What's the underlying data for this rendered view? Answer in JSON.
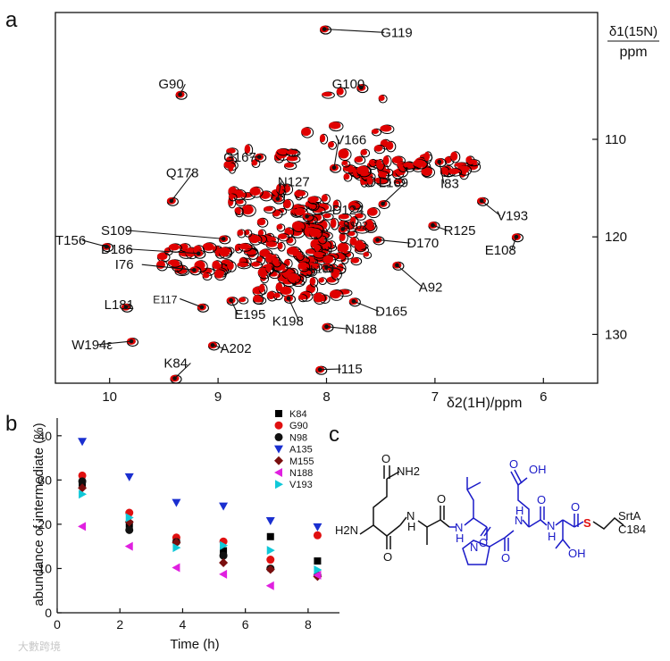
{
  "panels": {
    "a": "a",
    "b": "b",
    "c": "c"
  },
  "watermark": "大數跨境",
  "chart_data": [
    {
      "type": "scatter",
      "panel": "a",
      "title": "",
      "xlabel": "δ2(1H)/ppm",
      "ylabel_num": "δ1(15N)",
      "ylabel_den": "ppm",
      "xlim": [
        10.5,
        5.5
      ],
      "ylim": [
        135,
        97
      ],
      "xticks": [
        10,
        9,
        8,
        7,
        6
      ],
      "yticks": [
        110,
        120,
        130
      ],
      "reference_color": "#000000",
      "intermediate_color": "#e00000",
      "peaks": [
        {
          "x": 8.02,
          "y": 98.7,
          "label": "G119",
          "lx": 7.5,
          "ly": 99.5,
          "size": "big"
        },
        {
          "x": 9.35,
          "y": 105.4,
          "label": "G90",
          "lx": 9.55,
          "ly": 104.8,
          "size": "big"
        },
        {
          "x": 7.68,
          "y": 104.7,
          "label": "G100",
          "lx": 7.95,
          "ly": 104.8,
          "size": "big"
        },
        {
          "x": 8.62,
          "y": 111.8,
          "label": "G167",
          "lx": 8.95,
          "ly": 112.3,
          "size": "big"
        },
        {
          "x": 7.93,
          "y": 112.9,
          "label": "V166",
          "lx": 7.92,
          "ly": 110.5,
          "size": "big"
        },
        {
          "x": 8.45,
          "y": 116.1,
          "label": "N127",
          "lx": 8.45,
          "ly": 114.8,
          "size": "big"
        },
        {
          "x": 7.48,
          "y": 116.6,
          "label": "L169",
          "lx": 7.52,
          "ly": 114.9,
          "size": "big"
        },
        {
          "x": 6.96,
          "y": 112.3,
          "label": "I83",
          "lx": 6.95,
          "ly": 115.0,
          "size": "big"
        },
        {
          "x": 9.43,
          "y": 116.3,
          "label": "Q178",
          "lx": 9.48,
          "ly": 113.9,
          "size": "big"
        },
        {
          "x": 8.18,
          "y": 117.9,
          "label": "D124",
          "lx": 7.95,
          "ly": 117.7,
          "size": "big"
        },
        {
          "x": 6.57,
          "y": 116.3,
          "label": "V193",
          "lx": 6.43,
          "ly": 118.3,
          "size": "big"
        },
        {
          "x": 7.85,
          "y": 119.2,
          "label": "S102",
          "lx": 7.85,
          "ly": 119.2,
          "size": "small"
        },
        {
          "x": 8.95,
          "y": 120.2,
          "label": "S109",
          "lx": 10.08,
          "ly": 119.8,
          "size": "big"
        },
        {
          "x": 7.02,
          "y": 118.8,
          "label": "R125",
          "lx": 6.92,
          "ly": 119.8,
          "size": "big"
        },
        {
          "x": 10.03,
          "y": 121.0,
          "label": "T156",
          "lx": 10.5,
          "ly": 120.8,
          "size": "big"
        },
        {
          "x": 9.18,
          "y": 121.7,
          "label": "D186",
          "lx": 10.08,
          "ly": 121.7,
          "size": "big"
        },
        {
          "x": 7.53,
          "y": 120.3,
          "label": "D170",
          "lx": 7.26,
          "ly": 121.1,
          "size": "big"
        },
        {
          "x": 6.25,
          "y": 120.0,
          "label": "E108",
          "lx": 6.54,
          "ly": 121.8,
          "size": "big"
        },
        {
          "x": 9.22,
          "y": 123.4,
          "label": "I76",
          "lx": 9.95,
          "ly": 123.3,
          "size": "big"
        },
        {
          "x": 8.0,
          "y": 123.1,
          "label": "L133",
          "lx": 8.15,
          "ly": 123.7,
          "size": "small"
        },
        {
          "x": 7.35,
          "y": 122.9,
          "label": "A92",
          "lx": 7.15,
          "ly": 125.6,
          "size": "big"
        },
        {
          "x": 9.15,
          "y": 127.2,
          "label": "E117",
          "lx": 9.6,
          "ly": 126.8,
          "size": "small"
        },
        {
          "x": 8.88,
          "y": 126.5,
          "label": "E195",
          "lx": 8.85,
          "ly": 128.4,
          "size": "big"
        },
        {
          "x": 7.75,
          "y": 126.6,
          "label": "D165",
          "lx": 7.55,
          "ly": 128.1,
          "size": "big"
        },
        {
          "x": 9.85,
          "y": 127.2,
          "label": "L181",
          "lx": 10.05,
          "ly": 127.4,
          "size": "big"
        },
        {
          "x": 8.35,
          "y": 126.3,
          "label": "K198",
          "lx": 8.5,
          "ly": 129.1,
          "size": "big"
        },
        {
          "x": 8.0,
          "y": 129.2,
          "label": "N188",
          "lx": 7.83,
          "ly": 129.9,
          "size": "big"
        },
        {
          "x": 9.8,
          "y": 130.7,
          "label": "W194ε",
          "lx": 10.35,
          "ly": 131.5,
          "size": "big"
        },
        {
          "x": 9.05,
          "y": 131.1,
          "label": "A202",
          "lx": 8.98,
          "ly": 131.9,
          "size": "big"
        },
        {
          "x": 9.4,
          "y": 134.5,
          "label": "K84",
          "lx": 9.5,
          "ly": 133.4,
          "size": "big"
        },
        {
          "x": 8.06,
          "y": 133.6,
          "label": "I115",
          "lx": 7.9,
          "ly": 134.0,
          "size": "big"
        }
      ]
    },
    {
      "type": "scatter",
      "panel": "b",
      "title": "",
      "xlabel": "Time (h)",
      "ylabel": "abundance of intermediate (%)",
      "xlim": [
        0,
        9
      ],
      "ylim": [
        0,
        44
      ],
      "xticks": [
        0,
        2,
        4,
        6,
        8
      ],
      "yticks": [
        0,
        10,
        20,
        30,
        40
      ],
      "x": [
        0.8,
        2.3,
        3.8,
        5.3,
        6.8,
        8.3
      ],
      "series": [
        {
          "name": "K84",
          "marker": "square",
          "color": "#000000",
          "values": [
            29.3,
            20.0,
            16.4,
            14.0,
            17.2,
            11.7
          ]
        },
        {
          "name": "G90",
          "marker": "circle",
          "color": "#e01010",
          "values": [
            31.0,
            22.6,
            17.0,
            16.1,
            12.0,
            17.5
          ]
        },
        {
          "name": "N98",
          "marker": "circle",
          "color": "#111111",
          "values": [
            29.7,
            18.7,
            16.0,
            12.9,
            10.0,
            8.5
          ]
        },
        {
          "name": "A135",
          "marker": "triangle-down",
          "color": "#1a2fd0",
          "values": [
            38.7,
            30.7,
            24.9,
            24.1,
            20.8,
            19.4
          ]
        },
        {
          "name": "M155",
          "marker": "diamond",
          "color": "#7a0e0e",
          "values": [
            28.2,
            20.5,
            15.9,
            11.3,
            9.8,
            8.2
          ]
        },
        {
          "name": "N188",
          "marker": "triangle-left",
          "color": "#e020e0",
          "values": [
            19.5,
            15.0,
            10.2,
            8.7,
            6.1,
            8.5
          ]
        },
        {
          "name": "V193",
          "marker": "triangle-right",
          "color": "#10c8d8",
          "values": [
            26.8,
            21.5,
            14.7,
            15.2,
            14.1,
            9.7
          ]
        }
      ]
    }
  ],
  "structure": {
    "amide_label": "O",
    "amide_nh2": "NH2",
    "n_terminus": "H2N",
    "acid_label": "OH",
    "nh_labels": [
      "N",
      "H"
    ],
    "thioester_s": "S",
    "hydroxyl": "OH",
    "enzyme": "SrtA",
    "residue": "C184"
  }
}
